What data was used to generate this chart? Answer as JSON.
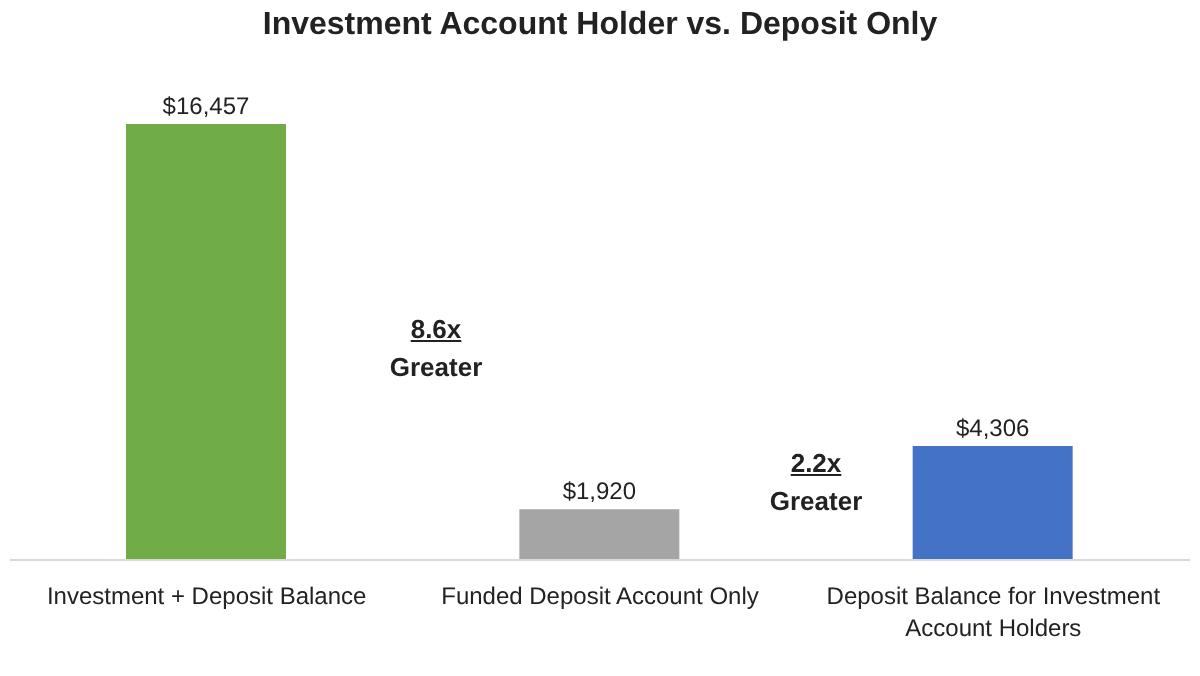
{
  "chart_data": {
    "type": "bar",
    "title": "Investment Account Holder vs. Deposit Only",
    "categories": [
      "Investment + Deposit Balance",
      "Funded Deposit Account Only",
      "Deposit Balance for Investment Account Holders"
    ],
    "values": [
      16457,
      1920,
      4306
    ],
    "colors": [
      "#70ad47",
      "#a5a5a5",
      "#4472c4"
    ],
    "value_labels": [
      "$16,457",
      "$1,920",
      "$4,306"
    ],
    "annotations": [
      "8.6x Greater",
      "2.2x Greater"
    ]
  }
}
